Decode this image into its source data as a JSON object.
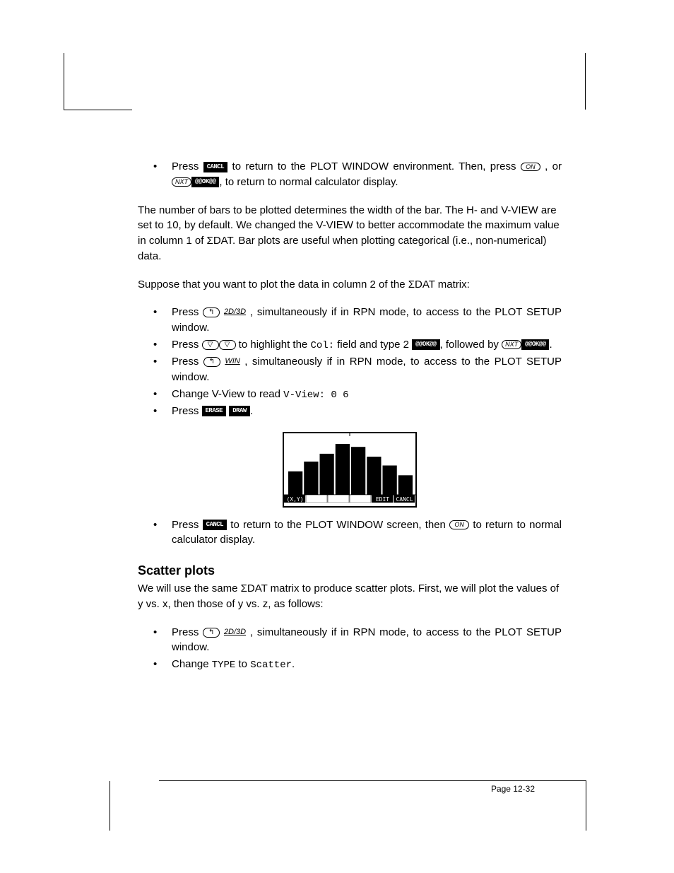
{
  "softkeys": {
    "cancl": "CANCL",
    "ok": "@@OK@@",
    "ok2": "@@OK@@",
    "erase": "ERASE",
    "draw": "DRAW",
    "edit": "EDIT",
    "xy": "(X,Y)"
  },
  "keys": {
    "on": "ON",
    "nxt": "NXT",
    "left_shift": "↰",
    "down": "▽"
  },
  "funcs": {
    "2d3d": "2D/3D",
    "win": "WIN"
  },
  "text": {
    "b1a": "Press ",
    "b1b": " to return to the PLOT WINDOW environment.  Then, press ",
    "b1c": " , or ",
    "b1d": ", to return to normal calculator display.",
    "p1": "The number of bars to be plotted determines the width of the bar.  The H- and V-VIEW are set to 10, by default.  We changed the V-VIEW to better accommodate the maximum value in column 1 of ΣDAT.  Bar plots are useful when plotting categorical (i.e., non-numerical) data.",
    "p2": "Suppose that you want to plot the data in column 2 of the ΣDAT matrix:",
    "s1a": "Press ",
    "s1b": " , simultaneously if in RPN mode, to access to the PLOT SETUP window.",
    "s2a": "Press ",
    "s2b": "  to highlight the ",
    "s2c": "Col:",
    "s2d": " field and type 2 ",
    "s2e": ", followed by ",
    "s2f": ".",
    "s3a": "Press ",
    "s3b": " , simultaneously if in RPN mode, to access to the PLOT SETUP window.",
    "s4a": "Change V-View to read ",
    "s4b": "V-View: 0  6",
    "s5a": "Press ",
    "s5b": ".",
    "b2a": "Press ",
    "b2b": " to return to the PLOT WINDOW screen, then ",
    "b2c": " to return to normal calculator display.",
    "h1": "Scatter plots",
    "p3": "We will use the same ΣDAT matrix to produce scatter plots.  First, we will plot the values of y vs. x, then those of y vs. z, as follows:",
    "t1a": "Press ",
    "t1b": " , simultaneously if in RPN mode, to access to the PLOT SETUP window.",
    "t2a": "Change ",
    "t2b": "TYPE",
    "t2c": " to ",
    "t2d": "Scatter",
    "t2e": "."
  },
  "barplot": {
    "width": 186,
    "height": 98,
    "background": "#ffffff",
    "bar_color": "#000000",
    "values": [
      2.4,
      3.4,
      4.2,
      5.2,
      4.9,
      3.9,
      3.0,
      2.0
    ],
    "ymax": 6,
    "menu_labels": [
      "(X,Y)",
      "",
      "",
      "",
      "EDIT",
      "CANCL"
    ]
  },
  "pagenum": "Page 12-32"
}
